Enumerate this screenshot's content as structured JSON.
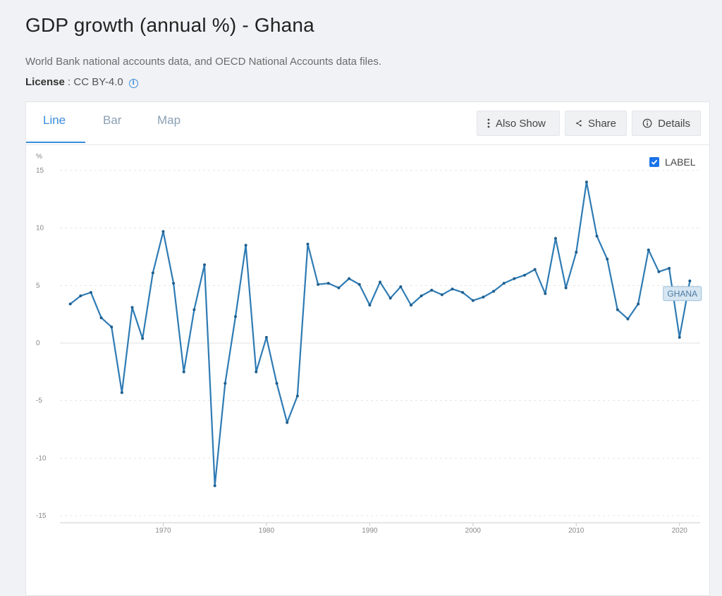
{
  "header": {
    "title": "GDP growth (annual %) - Ghana",
    "source": "World Bank national accounts data, and OECD National Accounts data files.",
    "license_label": "License",
    "license_value": "CC BY-4.0"
  },
  "tabs": [
    {
      "label": "Line",
      "active": true
    },
    {
      "label": "Bar",
      "active": false
    },
    {
      "label": "Map",
      "active": false
    }
  ],
  "toolbar": {
    "also_show": "Also Show",
    "share": "Share",
    "details": "Details"
  },
  "label_toggle": {
    "label": "LABEL",
    "checked": true
  },
  "colors": {
    "accent": "#3a8dde",
    "line": "#2e7bb4"
  },
  "chart_data": {
    "type": "line",
    "ylabel": "%",
    "ylim": [
      -15,
      15
    ],
    "yticks": [
      15,
      10,
      5,
      0,
      -5,
      -10,
      -15
    ],
    "xlim": [
      1960,
      2022
    ],
    "xticks": [
      1970,
      1980,
      1990,
      2000,
      2010,
      2020
    ],
    "grid": true,
    "series": [
      {
        "name": "GHANA",
        "x": [
          1961,
          1962,
          1963,
          1964,
          1965,
          1966,
          1967,
          1968,
          1969,
          1970,
          1971,
          1972,
          1973,
          1974,
          1975,
          1976,
          1977,
          1978,
          1979,
          1980,
          1981,
          1982,
          1983,
          1984,
          1985,
          1986,
          1987,
          1988,
          1989,
          1990,
          1991,
          1992,
          1993,
          1994,
          1995,
          1996,
          1997,
          1998,
          1999,
          2000,
          2001,
          2002,
          2003,
          2004,
          2005,
          2006,
          2007,
          2008,
          2009,
          2010,
          2011,
          2012,
          2013,
          2014,
          2015,
          2016,
          2017,
          2018,
          2019,
          2020,
          2021
        ],
        "values": [
          3.4,
          4.1,
          4.4,
          2.2,
          1.4,
          -4.3,
          3.1,
          0.4,
          6.1,
          9.7,
          5.2,
          -2.5,
          2.9,
          6.8,
          -12.4,
          -3.5,
          2.3,
          8.5,
          -2.5,
          0.5,
          -3.5,
          -6.9,
          -4.6,
          8.6,
          5.1,
          5.2,
          4.8,
          5.6,
          5.1,
          3.3,
          5.3,
          3.9,
          4.9,
          3.3,
          4.1,
          4.6,
          4.2,
          4.7,
          4.4,
          3.7,
          4.0,
          4.5,
          5.2,
          5.6,
          5.9,
          6.4,
          4.3,
          9.1,
          4.8,
          7.9,
          14.0,
          9.3,
          7.3,
          2.9,
          2.1,
          3.4,
          8.1,
          6.2,
          6.5,
          0.5,
          5.4
        ]
      }
    ]
  }
}
